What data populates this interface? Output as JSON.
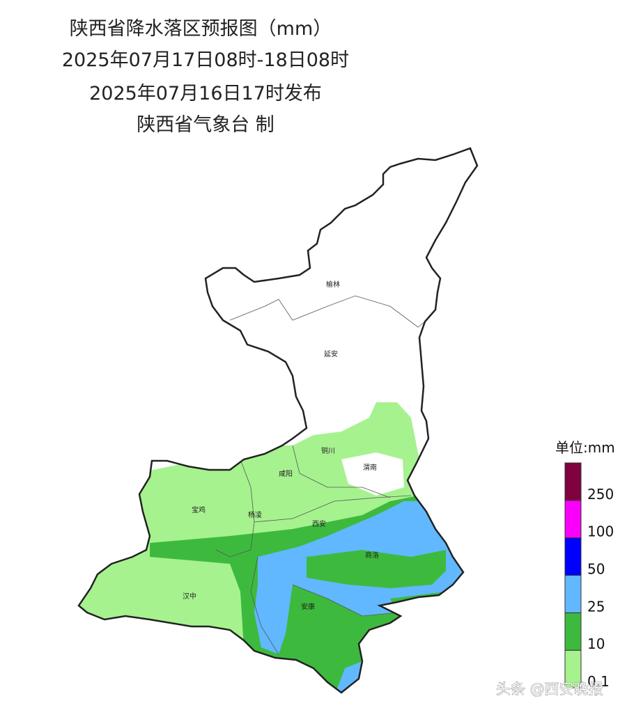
{
  "header": {
    "title": "陕西省降水落区预报图（mm）",
    "period": "2025年07月17日08时-18日08时",
    "issued": "2025年07月16日17时发布",
    "producer": "陕西省气象台 制"
  },
  "cities": [
    "榆林",
    "延安",
    "铜川",
    "咸阳",
    "渭南",
    "宝鸡",
    "杨凌",
    "西安",
    "汉中",
    "安康",
    "商洛"
  ],
  "legend": {
    "title": "单位:mm",
    "bins": [
      0.1,
      10,
      25,
      50,
      100,
      250
    ],
    "colors": [
      "#a6f28f",
      "#3dba3d",
      "#61b8ff",
      "#0000ff",
      "#fa00fa",
      "#800040"
    ]
  },
  "watermark": "头条 @西安晚报"
}
